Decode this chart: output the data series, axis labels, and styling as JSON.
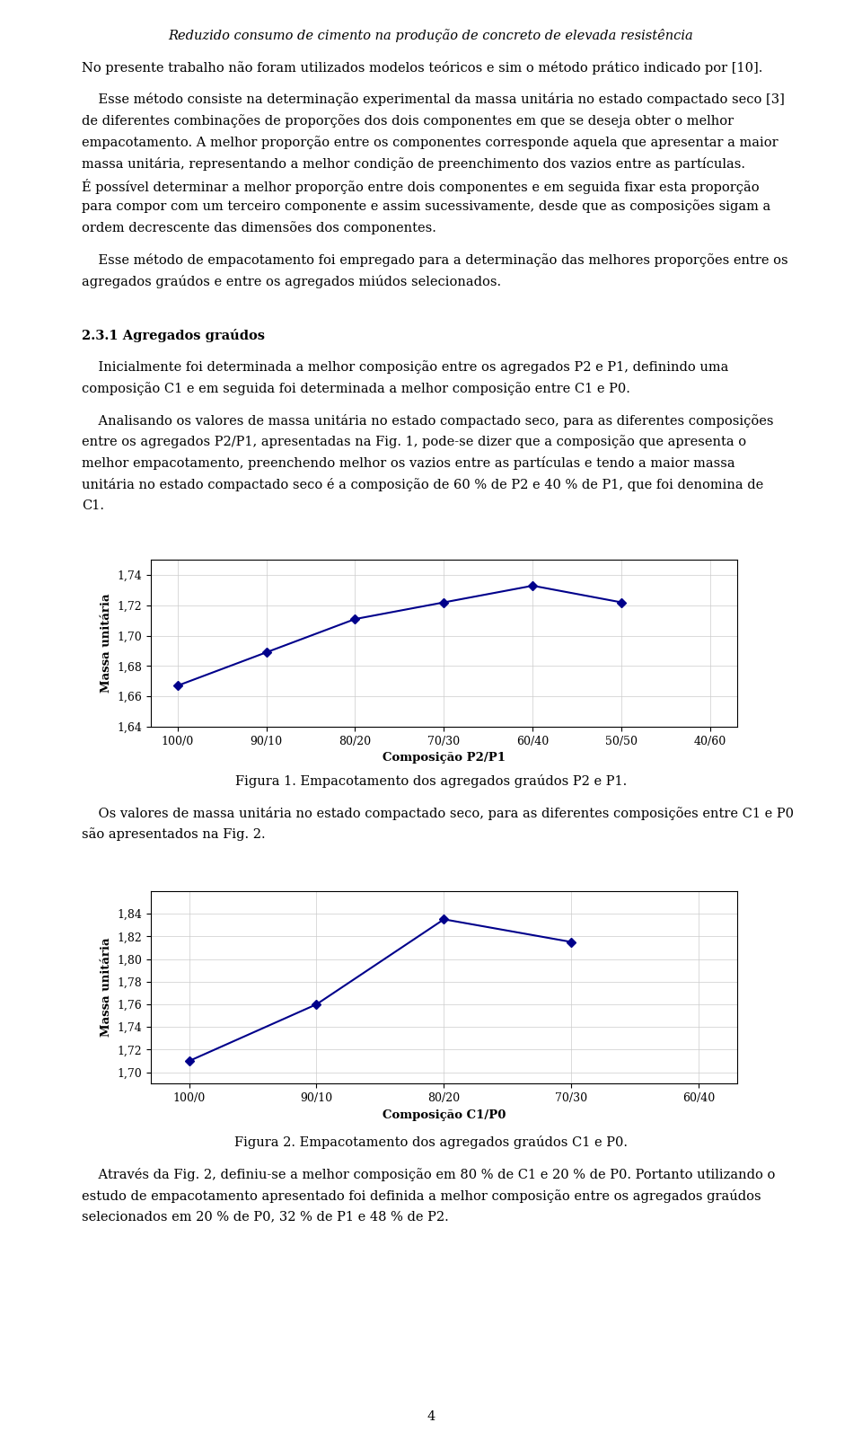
{
  "title": "Reduzido consumo de cimento na produção de concreto de elevada resistência",
  "fig1": {
    "x_labels": [
      "100/0",
      "90/10",
      "80/20",
      "70/30",
      "60/40",
      "50/50",
      "40/60"
    ],
    "data_x": [
      0,
      1,
      2,
      3,
      4,
      5
    ],
    "data_y": [
      1.667,
      1.689,
      1.711,
      1.722,
      1.733,
      1.722
    ],
    "xlabel": "Composição P2/P1",
    "ylabel": "Massa unitária",
    "ylim_min": 1.64,
    "ylim_max": 1.75,
    "yticks": [
      1.64,
      1.66,
      1.68,
      1.7,
      1.72,
      1.74
    ],
    "line_color": "#00008B",
    "marker_size": 5
  },
  "fig2": {
    "x_labels": [
      "100/0",
      "90/10",
      "80/20",
      "70/30",
      "60/40"
    ],
    "data_x": [
      0,
      1,
      2,
      3
    ],
    "data_y": [
      1.71,
      1.76,
      1.835,
      1.815
    ],
    "xlabel": "Composição C1/P0",
    "ylabel": "Massa unitária",
    "ylim_min": 1.69,
    "ylim_max": 1.86,
    "yticks": [
      1.7,
      1.72,
      1.74,
      1.76,
      1.78,
      1.8,
      1.82,
      1.84
    ],
    "line_color": "#00008B",
    "marker_size": 5
  },
  "text_color": "#000000",
  "bg_color": "#ffffff",
  "grid_color": "#cccccc",
  "font_size_body": 10.5,
  "font_size_title": 10.5,
  "font_size_axis_label": 9.5,
  "font_size_tick": 9,
  "para1": "No presente trabalho não foram utilizados modelos teóricos e sim o método prático indicado por [10].",
  "para2_lines": [
    "    Esse método consiste na determinação experimental da massa unitária no estado compactado seco [3]",
    "de diferentes combinações de proporções dos dois componentes em que se deseja obter o melhor",
    "empacotamento. A melhor proporção entre os componentes corresponde aquela que apresentar a maior",
    "massa unitária, representando a melhor condição de preenchimento dos vazios entre as partículas.",
    "É possível determinar a melhor proporção entre dois componentes e em seguida fixar esta proporção",
    "para compor com um terceiro componente e assim sucessivamente, desde que as composições sigam a",
    "ordem decrescente das dimensões dos componentes."
  ],
  "para3_lines": [
    "    Esse método de empacotamento foi empregado para a determinação das melhores proporções entre os",
    "agregados graúdos e entre os agregados miúdos selecionados."
  ],
  "section_header": "2.3.1 Agregados graúdos",
  "para4_lines": [
    "    Inicialmente foi determinada a melhor composição entre os agregados P2 e P1, definindo uma",
    "composição C1 e em seguida foi determinada a melhor composição entre C1 e P0."
  ],
  "para5_lines": [
    "    Analisando os valores de massa unitária no estado compactado seco, para as diferentes composições",
    "entre os agregados P2/P1, apresentadas na Fig. 1, pode-se dizer que a composição que apresenta o",
    "melhor empacotamento, preenchendo melhor os vazios entre as partículas e tendo a maior massa",
    "unitária no estado compactado seco é a composição de 60 % de P2 e 40 % de P1, que foi denomina de",
    "C1."
  ],
  "fig1_caption": "Figura 1. Empacotamento dos agregados graúdos P2 e P1.",
  "para6_lines": [
    "    Os valores de massa unitária no estado compactado seco, para as diferentes composições entre C1 e P0",
    "são apresentados na Fig. 2."
  ],
  "fig2_caption": "Figura 2. Empacotamento dos agregados graúdos C1 e P0.",
  "para7_lines": [
    "    Através da Fig. 2, definiu-se a melhor composição em 80 % de C1 e 20 % de P0. Portanto utilizando o",
    "estudo de empacotamento apresentado foi definida a melhor composição entre os agregados graúdos",
    "selecionados em 20 % de P0, 32 % de P1 e 48 % de P2."
  ],
  "page_number": "4"
}
